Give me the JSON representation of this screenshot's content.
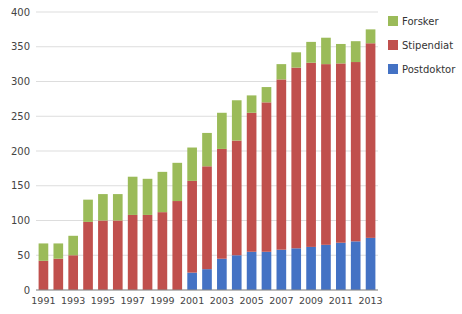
{
  "chart_data": {
    "type": "bar",
    "stacked": true,
    "grid": true,
    "legend": "right",
    "categories": [
      "1991",
      null,
      "1993",
      null,
      "1995",
      null,
      "1997",
      null,
      "1999",
      null,
      "2001",
      null,
      "2003",
      null,
      "2005",
      null,
      "2007",
      null,
      "2009",
      null,
      "2011",
      null,
      "2013"
    ],
    "series": [
      {
        "name": "Postdoktor",
        "color": "#4472C4",
        "values": [
          0,
          0,
          0,
          0,
          0,
          0,
          0,
          0,
          0,
          0,
          25,
          30,
          45,
          50,
          55,
          55,
          58,
          60,
          62,
          65,
          68,
          70,
          75
        ]
      },
      {
        "name": "Stipendiat",
        "color": "#C0504D",
        "values": [
          42,
          45,
          50,
          98,
          100,
          100,
          108,
          108,
          112,
          128,
          132,
          148,
          158,
          165,
          200,
          215,
          245,
          260,
          265,
          260,
          258,
          258,
          280
        ]
      },
      {
        "name": "Forsker",
        "color": "#9BBB59",
        "values": [
          25,
          22,
          28,
          32,
          38,
          38,
          55,
          52,
          58,
          55,
          48,
          48,
          52,
          58,
          25,
          22,
          22,
          22,
          30,
          38,
          28,
          30,
          20
        ]
      }
    ],
    "ylim": [
      0,
      400
    ],
    "yticks": [
      0,
      50,
      100,
      150,
      200,
      250,
      300,
      350,
      400
    ]
  }
}
